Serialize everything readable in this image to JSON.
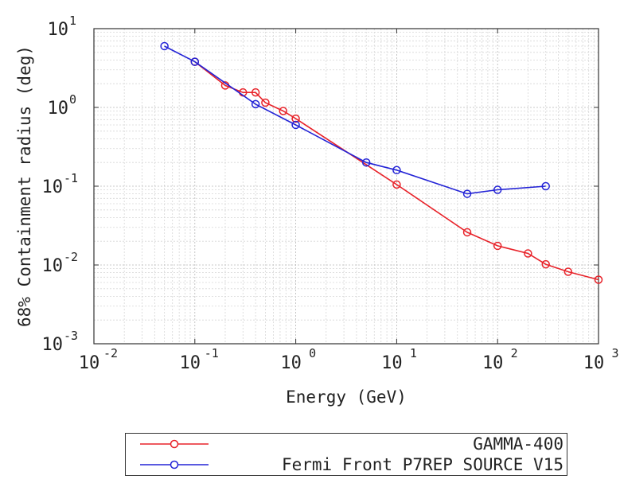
{
  "chart_data": {
    "type": "line",
    "xlabel": "Energy (GeV)",
    "ylabel": "68% Containment radius (deg)",
    "xscale": "log",
    "yscale": "log",
    "xlim": [
      0.01,
      1000
    ],
    "ylim": [
      0.001,
      10
    ],
    "grid": true,
    "legend_position": "bottom",
    "x_ticks": [
      {
        "base": "10",
        "exp": "-2"
      },
      {
        "base": "10",
        "exp": "-1"
      },
      {
        "base": "10",
        "exp": "0"
      },
      {
        "base": "10",
        "exp": "1"
      },
      {
        "base": "10",
        "exp": "2"
      },
      {
        "base": "10",
        "exp": "3"
      }
    ],
    "y_ticks": [
      {
        "base": "10",
        "exp": "-3"
      },
      {
        "base": "10",
        "exp": "-2"
      },
      {
        "base": "10",
        "exp": "-1"
      },
      {
        "base": "10",
        "exp": "0"
      },
      {
        "base": "10",
        "exp": "1"
      }
    ],
    "series": [
      {
        "name": "GAMMA-400",
        "color": "#e8232a",
        "marker": "circle",
        "x": [
          0.1,
          0.2,
          0.3,
          0.4,
          0.5,
          0.75,
          1,
          10,
          50,
          100,
          200,
          300,
          500,
          1000
        ],
        "y": [
          3.8,
          1.9,
          1.55,
          1.55,
          1.15,
          0.9,
          0.72,
          0.105,
          0.026,
          0.0175,
          0.014,
          0.0102,
          0.0082,
          0.0065
        ]
      },
      {
        "name": "Fermi Front P7REP SOURCE V15",
        "color": "#2323d6",
        "marker": "circle",
        "x": [
          0.05,
          0.1,
          0.4,
          1,
          5,
          10,
          50,
          100,
          300
        ],
        "y": [
          6.0,
          3.8,
          1.1,
          0.6,
          0.2,
          0.16,
          0.08,
          0.09,
          0.1
        ]
      }
    ]
  }
}
